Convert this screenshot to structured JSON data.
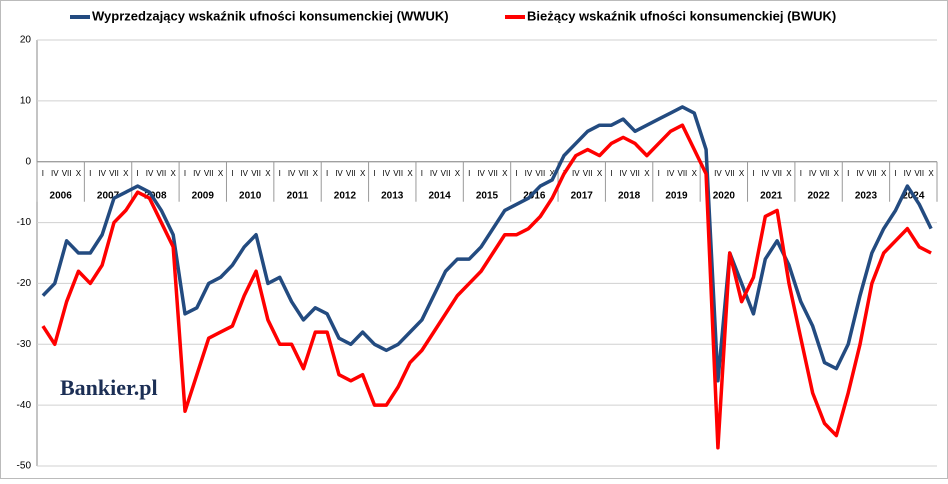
{
  "chart_data": {
    "type": "line",
    "categories": [
      "I",
      "IV",
      "VII",
      "X",
      "I",
      "IV",
      "VII",
      "X",
      "I",
      "IV",
      "VII",
      "X",
      "I",
      "IV",
      "VII",
      "X",
      "I",
      "IV",
      "VII",
      "X",
      "I",
      "IV",
      "VII",
      "X",
      "I",
      "IV",
      "VII",
      "X",
      "I",
      "IV",
      "VII",
      "X",
      "I",
      "IV",
      "VII",
      "X",
      "I",
      "IV",
      "VII",
      "X",
      "I",
      "IV",
      "VII",
      "X",
      "I",
      "IV",
      "VII",
      "X",
      "I",
      "IV",
      "VII",
      "X",
      "I",
      "IV",
      "VII",
      "X",
      "I",
      "IV",
      "VII",
      "X",
      "I",
      "IV",
      "VII",
      "X",
      "I",
      "IV",
      "VII",
      "X",
      "I",
      "IV",
      "VII",
      "X",
      "I",
      "IV",
      "VII",
      "X"
    ],
    "years": [
      2006,
      2007,
      2008,
      2009,
      2010,
      2011,
      2012,
      2013,
      2014,
      2015,
      2016,
      2017,
      2018,
      2019,
      2020,
      2021,
      2022,
      2023,
      2024
    ],
    "series": [
      {
        "name": "Wyprzedzający wskaźnik ufności konsumenckiej (WWUK)",
        "color": "#234b80",
        "values": [
          -22,
          -20,
          -13,
          -15,
          -15,
          -12,
          -6,
          -5,
          -4,
          -5,
          -8,
          -12,
          -25,
          -24,
          -20,
          -19,
          -17,
          -14,
          -12,
          -20,
          -19,
          -23,
          -26,
          -24,
          -25,
          -29,
          -30,
          -28,
          -30,
          -31,
          -30,
          -28,
          -26,
          -22,
          -18,
          -16,
          -16,
          -14,
          -11,
          -8,
          -7,
          -6,
          -4,
          -3,
          1,
          3,
          5,
          6,
          6,
          7,
          5,
          6,
          7,
          8,
          9,
          8,
          2,
          -36,
          -15,
          -20,
          -25,
          -16,
          -13,
          -17,
          -23,
          -27,
          -33,
          -34,
          -30,
          -22,
          -15,
          -11,
          -8,
          -4,
          -7,
          -11
        ]
      },
      {
        "name": "Bieżący wskaźnik ufności konsumenckiej (BWUK)",
        "color": "#ff0000",
        "values": [
          -27,
          -30,
          -23,
          -18,
          -20,
          -17,
          -10,
          -8,
          -5,
          -6,
          -10,
          -14,
          -41,
          -35,
          -29,
          -28,
          -27,
          -22,
          -18,
          -26,
          -30,
          -30,
          -34,
          -28,
          -28,
          -35,
          -36,
          -35,
          -40,
          -40,
          -37,
          -33,
          -31,
          -28,
          -25,
          -22,
          -20,
          -18,
          -15,
          -12,
          -12,
          -11,
          -9,
          -6,
          -2,
          1,
          2,
          1,
          3,
          4,
          3,
          1,
          3,
          5,
          6,
          2,
          -2,
          -47,
          -15,
          -23,
          -19,
          -9,
          -8,
          -20,
          -29,
          -38,
          -43,
          -45,
          -38,
          -30,
          -20,
          -15,
          -13,
          -11,
          -14,
          -15
        ]
      }
    ],
    "ylim": [
      -50,
      20
    ],
    "yticks": [
      -50,
      -40,
      -30,
      -20,
      -10,
      0,
      10,
      20
    ],
    "grid": true,
    "watermark": "Bankier.pl"
  }
}
